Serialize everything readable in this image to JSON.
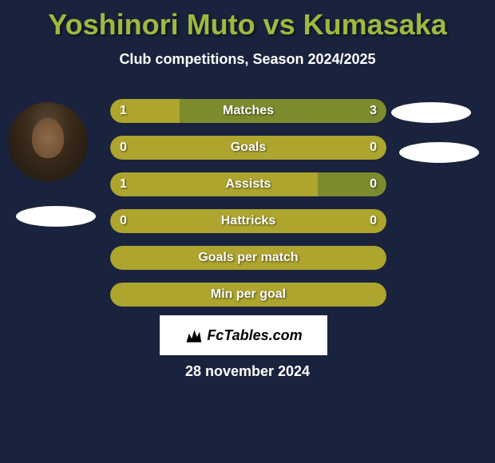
{
  "title": "Yoshinori Muto vs Kumasaka",
  "subtitle": "Club competitions, Season 2024/2025",
  "date": "28 november 2024",
  "logo_text": "FcTables.com",
  "colors": {
    "background": "#1a233d",
    "accent": "#9fb93f",
    "bar_primary": "#ada52e",
    "bar_secondary": "#7d8a2e",
    "text": "#ffffff",
    "badge": "#ffffff"
  },
  "stats": [
    {
      "label": "Matches",
      "left_value": "1",
      "right_value": "3",
      "left_width": 25,
      "right_width": 75,
      "left_color": "#ada52e",
      "right_color": "#7d8a2e"
    },
    {
      "label": "Goals",
      "left_value": "0",
      "right_value": "0",
      "left_width": 100,
      "right_width": 0,
      "left_color": "#ada52e",
      "right_color": "#7d8a2e"
    },
    {
      "label": "Assists",
      "left_value": "1",
      "right_value": "0",
      "left_width": 75,
      "right_width": 25,
      "left_color": "#ada52e",
      "right_color": "#7d8a2e"
    },
    {
      "label": "Hattricks",
      "left_value": "0",
      "right_value": "0",
      "left_width": 100,
      "right_width": 0,
      "left_color": "#ada52e",
      "right_color": "#7d8a2e"
    },
    {
      "label": "Goals per match",
      "left_value": "",
      "right_value": "",
      "left_width": 100,
      "right_width": 0,
      "left_color": "#ada52e",
      "right_color": "#7d8a2e"
    },
    {
      "label": "Min per goal",
      "left_value": "",
      "right_value": "",
      "left_width": 100,
      "right_width": 0,
      "left_color": "#ada52e",
      "right_color": "#7d8a2e"
    }
  ]
}
